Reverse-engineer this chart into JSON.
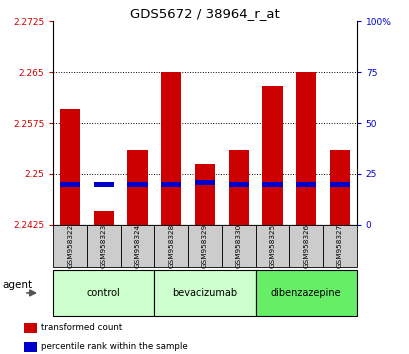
{
  "title": "GDS5672 / 38964_r_at",
  "samples": [
    "GSM958322",
    "GSM958323",
    "GSM958324",
    "GSM958328",
    "GSM958329",
    "GSM958330",
    "GSM958325",
    "GSM958326",
    "GSM958327"
  ],
  "transformed_counts": [
    2.2595,
    2.2445,
    2.2535,
    2.265,
    2.2515,
    2.2535,
    2.263,
    2.265,
    2.2535
  ],
  "percentile_ranks": [
    20,
    20,
    20,
    20,
    21,
    20,
    20,
    20,
    20
  ],
  "ymin": 2.2425,
  "ymax": 2.2725,
  "yticks": [
    2.2425,
    2.25,
    2.2575,
    2.265,
    2.2725
  ],
  "ytick_labels": [
    "2.2425",
    "2.25",
    "2.2575",
    "2.265",
    "2.2725"
  ],
  "right_yticks": [
    0,
    25,
    50,
    75,
    100
  ],
  "right_ytick_labels": [
    "0",
    "25",
    "50",
    "75",
    "100%"
  ],
  "groups": [
    {
      "label": "control",
      "indices": [
        0,
        1,
        2
      ],
      "color": "#ccffcc"
    },
    {
      "label": "bevacizumab",
      "indices": [
        3,
        4,
        5
      ],
      "color": "#ccffcc"
    },
    {
      "label": "dibenzazepine",
      "indices": [
        6,
        7,
        8
      ],
      "color": "#66ee66"
    }
  ],
  "bar_color": "#cc0000",
  "percentile_color": "#0000cc",
  "bar_width": 0.6,
  "agent_label": "agent",
  "legend_items": [
    {
      "label": "transformed count",
      "color": "#cc0000"
    },
    {
      "label": "percentile rank within the sample",
      "color": "#0000cc"
    }
  ],
  "grid_color": "black",
  "axis_label_color_left": "#cc0000",
  "axis_label_color_right": "#0000cc",
  "bg_color": "#ffffff"
}
